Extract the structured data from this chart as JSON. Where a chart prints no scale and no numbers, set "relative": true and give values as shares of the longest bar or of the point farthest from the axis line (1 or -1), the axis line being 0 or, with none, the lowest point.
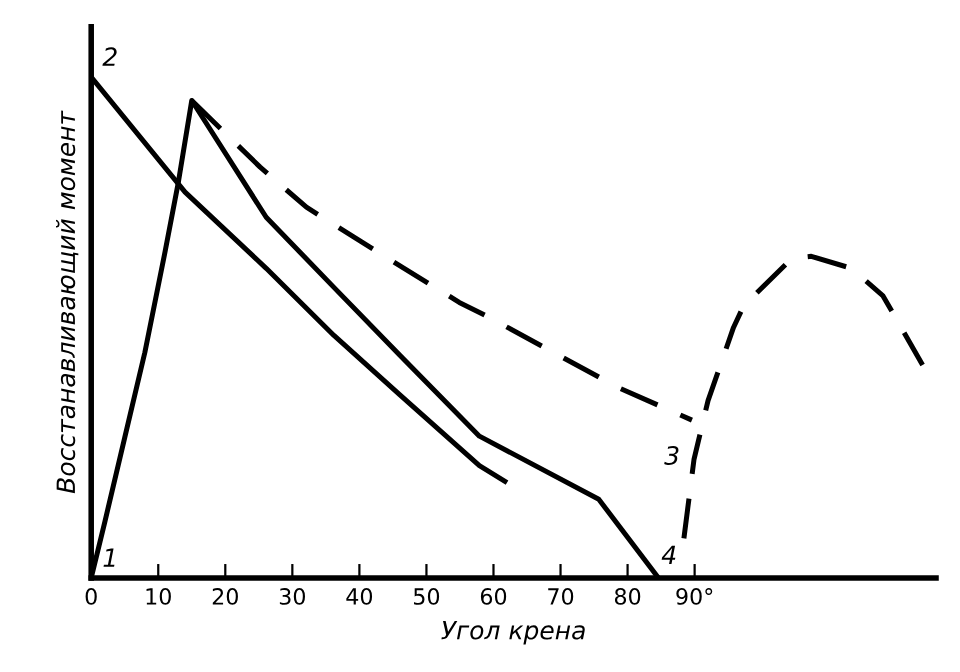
{
  "chart_data": {
    "type": "line",
    "relative": true,
    "xlabel": "Угол крена",
    "ylabel": "Восстанавливающий момент",
    "xlim": [
      0,
      126
    ],
    "xticks": [
      0,
      10,
      20,
      30,
      40,
      50,
      60,
      70,
      80,
      {
        "value": 90,
        "label": "90°"
      }
    ],
    "tick_labels": "x",
    "grid": false,
    "legend": false,
    "marker": "none",
    "series": [
      {
        "color": "#000000",
        "line_style": "solid",
        "x": [
          0,
          2,
          5,
          8,
          11,
          13,
          15,
          26.1,
          36.2,
          46,
          57.9,
          75.7,
          84.6
        ],
        "values": [
          0,
          0.11,
          0.28,
          0.45,
          0.65,
          0.79,
          0.953,
          0.72,
          0.58,
          0.445,
          0.283,
          0.157,
          0
        ]
      },
      {
        "color": "#000000",
        "line_style": "solid",
        "x": [
          0,
          14,
          26.1,
          36.2,
          46,
          57.9,
          61.7
        ],
        "values": [
          1.0,
          0.77,
          0.618,
          0.484,
          0.366,
          0.224,
          0.193
        ]
      },
      {
        "color": "#000000",
        "line_style": "dashed",
        "x": [
          15,
          25.2,
          32.1,
          44,
          54.9,
          58.8,
          78.6,
          89.6
        ],
        "values": [
          0.953,
          0.82,
          0.74,
          0.64,
          0.55,
          0.524,
          0.38,
          0.315
        ]
      },
      {
        "color": "#000000",
        "line_style": "dashed",
        "x": [
          88.4,
          89.9,
          92,
          95.8,
          97.3,
          104.5,
          107.4,
          113.4,
          118.1,
          124
        ],
        "values": [
          0.079,
          0.236,
          0.354,
          0.5,
          0.543,
          0.638,
          0.642,
          0.618,
          0.563,
          0.425
        ]
      }
    ],
    "annotations": [
      {
        "text": "1",
        "x": 0,
        "y": 0
      },
      {
        "text": "2",
        "x": 0,
        "y": 1.0
      },
      {
        "text": "3",
        "x": 89.6,
        "y": 0.315
      },
      {
        "text": "4",
        "x": 84.6,
        "y": 0
      }
    ]
  }
}
